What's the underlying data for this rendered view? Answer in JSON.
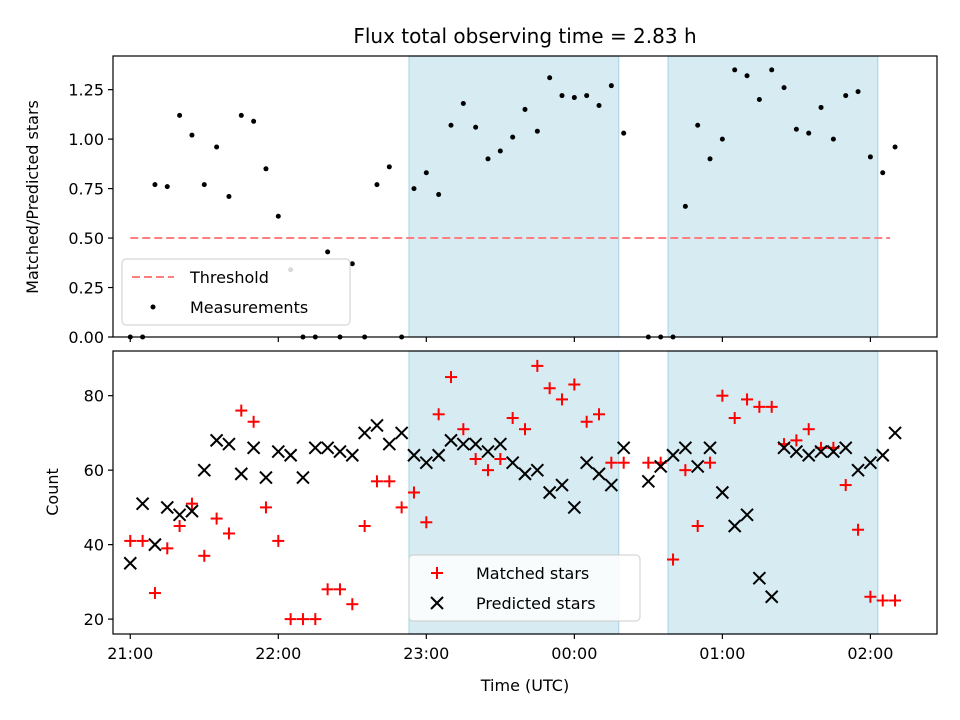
{
  "chart_data": [
    {
      "panel": "top",
      "type": "scatter",
      "title": "Flux total observing time = 2.83 h",
      "xlabel": "",
      "ylabel": "Matched/Predicted stars",
      "ylim": [
        0,
        1.42
      ],
      "yticks": [
        0,
        0.25,
        0.5,
        0.75,
        1.0,
        1.25
      ],
      "ytick_labels": [
        "0.00",
        "0.25",
        "0.50",
        "0.75",
        "1.00",
        "1.25"
      ],
      "xlim": [
        "20:53",
        "02:27"
      ],
      "x_ticks": [
        "21:00",
        "22:00",
        "23:00",
        "00:00",
        "01:00",
        "02:00"
      ],
      "shaded_intervals": [
        [
          "22:53",
          "00:18"
        ],
        [
          "00:38",
          "02:03"
        ]
      ],
      "shade_color": "#add8e6",
      "legend_position": "lower left",
      "series": [
        {
          "name": "Threshold",
          "kind": "line",
          "color": "#ff7f7f",
          "dash": true,
          "x": [
            "21:00",
            "02:08"
          ],
          "y": [
            0.5,
            0.5
          ]
        },
        {
          "name": "Measurements",
          "kind": "point",
          "color": "#000000",
          "x": [
            "21:00",
            "21:05",
            "21:10",
            "21:15",
            "21:20",
            "21:25",
            "21:30",
            "21:35",
            "21:40",
            "21:45",
            "21:50",
            "21:55",
            "22:00",
            "22:05",
            "22:10",
            "22:15",
            "22:20",
            "22:25",
            "22:30",
            "22:35",
            "22:40",
            "22:45",
            "22:50",
            "22:55",
            "23:00",
            "23:05",
            "23:10",
            "23:15",
            "23:20",
            "23:25",
            "23:30",
            "23:35",
            "23:40",
            "23:45",
            "23:50",
            "23:55",
            "00:00",
            "00:05",
            "00:10",
            "00:15",
            "00:20",
            "00:30",
            "00:35",
            "00:40",
            "00:45",
            "00:50",
            "00:55",
            "01:00",
            "01:05",
            "01:10",
            "01:15",
            "01:20",
            "01:25",
            "01:30",
            "01:35",
            "01:40",
            "01:45",
            "01:50",
            "01:55",
            "02:00",
            "02:05",
            "02:10"
          ],
          "y": [
            0,
            0,
            0.77,
            0.76,
            1.12,
            1.02,
            0.77,
            0.96,
            0.71,
            1.12,
            1.09,
            0.85,
            0.61,
            0.34,
            0,
            0,
            0.43,
            0,
            0.37,
            0,
            0.77,
            0.86,
            0,
            0.75,
            0.83,
            0.72,
            1.07,
            1.18,
            1.06,
            0.9,
            0.94,
            1.01,
            1.15,
            1.04,
            1.31,
            1.22,
            1.21,
            1.22,
            1.17,
            1.27,
            1.03,
            0,
            0,
            0,
            0.66,
            1.07,
            0.9,
            1.0,
            1.35,
            1.32,
            1.2,
            1.35,
            1.26,
            1.05,
            1.03,
            1.16,
            1.0,
            1.22,
            1.24,
            0.91,
            0.83,
            0.96
          ]
        }
      ]
    },
    {
      "panel": "bottom",
      "type": "scatter",
      "title": "",
      "xlabel": "Time (UTC)",
      "ylabel": "Count",
      "ylim": [
        16,
        92
      ],
      "yticks": [
        20,
        40,
        60,
        80
      ],
      "ytick_labels": [
        "20",
        "40",
        "60",
        "80"
      ],
      "xlim": [
        "20:53",
        "02:27"
      ],
      "x_ticks": [
        "21:00",
        "22:00",
        "23:00",
        "00:00",
        "01:00",
        "02:00"
      ],
      "shaded_intervals": [
        [
          "22:53",
          "00:18"
        ],
        [
          "00:38",
          "02:03"
        ]
      ],
      "shade_color": "#add8e6",
      "legend_position": "lower center",
      "series": [
        {
          "name": "Matched stars",
          "kind": "plus",
          "color": "#ff0000",
          "x": [
            "21:00",
            "21:05",
            "21:10",
            "21:15",
            "21:20",
            "21:25",
            "21:30",
            "21:35",
            "21:40",
            "21:45",
            "21:50",
            "21:55",
            "22:00",
            "22:05",
            "22:10",
            "22:15",
            "22:20",
            "22:25",
            "22:30",
            "22:35",
            "22:40",
            "22:45",
            "22:50",
            "22:55",
            "23:00",
            "23:05",
            "23:10",
            "23:15",
            "23:20",
            "23:25",
            "23:30",
            "23:35",
            "23:40",
            "23:45",
            "23:50",
            "23:55",
            "00:00",
            "00:05",
            "00:10",
            "00:15",
            "00:20",
            "00:30",
            "00:35",
            "00:40",
            "00:45",
            "00:50",
            "00:55",
            "01:00",
            "01:05",
            "01:10",
            "01:15",
            "01:20",
            "01:25",
            "01:30",
            "01:35",
            "01:40",
            "01:45",
            "01:50",
            "01:55",
            "02:00",
            "02:05",
            "02:10"
          ],
          "y": [
            41,
            41,
            27,
            39,
            45,
            51,
            37,
            47,
            43,
            76,
            73,
            50,
            41,
            20,
            20,
            20,
            28,
            28,
            24,
            45,
            57,
            57,
            50,
            54,
            46,
            75,
            85,
            71,
            63,
            60,
            63,
            74,
            71,
            88,
            82,
            79,
            83,
            73,
            75,
            62,
            62,
            62,
            62,
            36,
            60,
            45,
            62,
            80,
            74,
            79,
            77,
            77,
            67,
            68,
            71,
            66,
            66,
            56,
            44,
            26,
            25,
            25
          ]
        },
        {
          "name": "Predicted stars",
          "kind": "cross",
          "color": "#000000",
          "x": [
            "21:00",
            "21:05",
            "21:10",
            "21:15",
            "21:20",
            "21:25",
            "21:30",
            "21:35",
            "21:40",
            "21:45",
            "21:50",
            "21:55",
            "22:00",
            "22:05",
            "22:10",
            "22:15",
            "22:20",
            "22:25",
            "22:30",
            "22:35",
            "22:40",
            "22:45",
            "22:50",
            "22:55",
            "23:00",
            "23:05",
            "23:10",
            "23:15",
            "23:20",
            "23:25",
            "23:30",
            "23:35",
            "23:40",
            "23:45",
            "23:50",
            "23:55",
            "00:00",
            "00:05",
            "00:10",
            "00:15",
            "00:20",
            "00:30",
            "00:35",
            "00:40",
            "00:45",
            "00:50",
            "00:55",
            "01:00",
            "01:05",
            "01:10",
            "01:15",
            "01:20",
            "01:25",
            "01:30",
            "01:35",
            "01:40",
            "01:45",
            "01:50",
            "01:55",
            "02:00",
            "02:05",
            "02:10"
          ],
          "y": [
            35,
            51,
            40,
            50,
            48,
            49,
            60,
            68,
            67,
            59,
            66,
            58,
            65,
            64,
            58,
            66,
            66,
            65,
            64,
            70,
            72,
            67,
            70,
            64,
            62,
            64,
            68,
            67,
            67,
            65,
            67,
            62,
            59,
            60,
            54,
            56,
            50,
            62,
            59,
            56,
            66,
            57,
            61,
            64,
            66,
            61,
            66,
            54,
            45,
            48,
            31,
            26,
            66,
            65,
            64,
            65,
            65,
            66,
            60,
            62,
            64,
            70
          ]
        }
      ]
    }
  ]
}
